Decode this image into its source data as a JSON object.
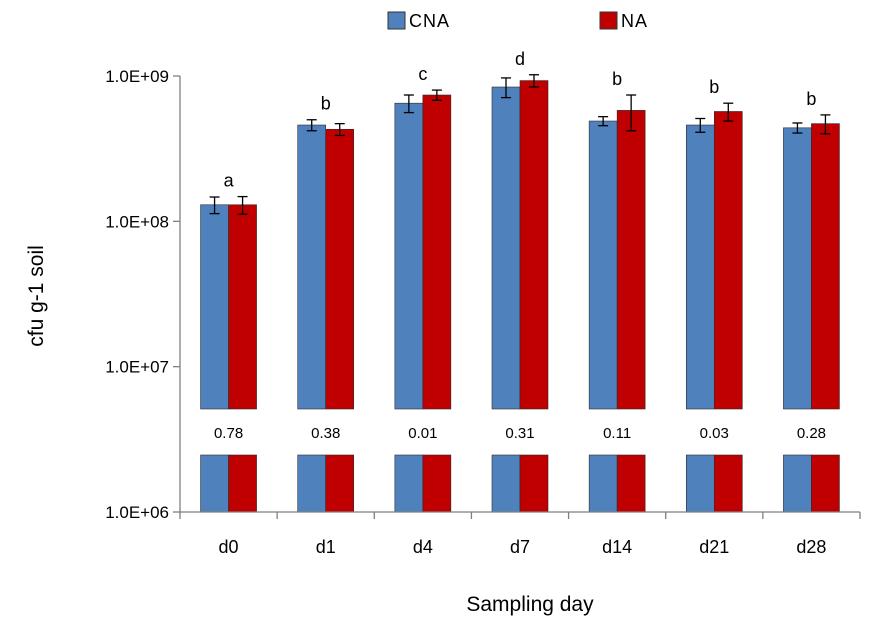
{
  "chart_data": {
    "type": "bar",
    "scale": "log",
    "xlabel": "Sampling day",
    "ylabel": "cfu g-1 soil",
    "ylim": [
      1000000,
      1000000000
    ],
    "y_ticks": [
      {
        "value": 1000000,
        "label": "1.0E+06"
      },
      {
        "value": 10000000,
        "label": "1.0E+07"
      },
      {
        "value": 100000000,
        "label": "1.0E+08"
      },
      {
        "value": 1000000000,
        "label": "1.0E+09"
      }
    ],
    "categories": [
      "d0",
      "d1",
      "d4",
      "d7",
      "d14",
      "d21",
      "d28"
    ],
    "series": [
      {
        "name": "CNA",
        "color": "#4f81bd",
        "values": [
          130000000,
          460000000,
          650000000,
          840000000,
          490000000,
          460000000,
          440000000
        ],
        "errors": [
          17000000,
          40000000,
          90000000,
          130000000,
          35000000,
          50000000,
          35000000
        ]
      },
      {
        "name": "NA",
        "color": "#c00000",
        "values": [
          130000000,
          430000000,
          740000000,
          930000000,
          580000000,
          570000000,
          470000000
        ],
        "errors": [
          18000000,
          40000000,
          60000000,
          90000000,
          160000000,
          80000000,
          70000000
        ]
      }
    ],
    "significance_letters": [
      "a",
      "b",
      "c",
      "d",
      "b",
      "b",
      "b"
    ],
    "p_values": [
      "0.78",
      "0.38",
      "0.01",
      "0.31",
      "0.11",
      "0.03",
      "0.28"
    ],
    "axis_break": true,
    "grid": false,
    "legend_position": "top"
  }
}
